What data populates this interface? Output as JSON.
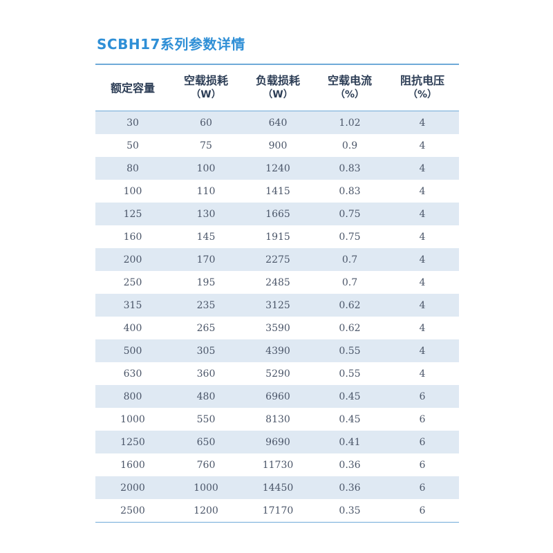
{
  "title": "SCBH17系列参数详情",
  "headers": [
    {
      "label": "额定容量",
      "unit": ""
    },
    {
      "label": "空载损耗",
      "unit": "（W）"
    },
    {
      "label": "负载损耗",
      "unit": "（W）"
    },
    {
      "label": "空载电流",
      "unit": "（%）"
    },
    {
      "label": "阻抗电压",
      "unit": "（%）"
    }
  ],
  "rows": [
    [
      "30",
      "60",
      "640",
      "1.02",
      "4"
    ],
    [
      "50",
      "75",
      "900",
      "0.9",
      "4"
    ],
    [
      "80",
      "100",
      "1240",
      "0.83",
      "4"
    ],
    [
      "100",
      "110",
      "1415",
      "0.83",
      "4"
    ],
    [
      "125",
      "130",
      "1665",
      "0.75",
      "4"
    ],
    [
      "160",
      "145",
      "1915",
      "0.75",
      "4"
    ],
    [
      "200",
      "170",
      "2275",
      "0.7",
      "4"
    ],
    [
      "250",
      "195",
      "2485",
      "0.7",
      "4"
    ],
    [
      "315",
      "235",
      "3125",
      "0.62",
      "4"
    ],
    [
      "400",
      "265",
      "3590",
      "0.62",
      "4"
    ],
    [
      "500",
      "305",
      "4390",
      "0.55",
      "4"
    ],
    [
      "630",
      "360",
      "5290",
      "0.55",
      "4"
    ],
    [
      "800",
      "480",
      "6960",
      "0.45",
      "6"
    ],
    [
      "1000",
      "550",
      "8130",
      "0.45",
      "6"
    ],
    [
      "1250",
      "650",
      "9690",
      "0.41",
      "6"
    ],
    [
      "1600",
      "760",
      "11730",
      "0.36",
      "6"
    ],
    [
      "2000",
      "1000",
      "14450",
      "0.36",
      "6"
    ],
    [
      "2500",
      "1200",
      "17170",
      "0.35",
      "6"
    ]
  ],
  "colors": {
    "title": "#2f8fd6",
    "rule": "#6ea9d8",
    "row_shade": "#dfe9f3"
  }
}
